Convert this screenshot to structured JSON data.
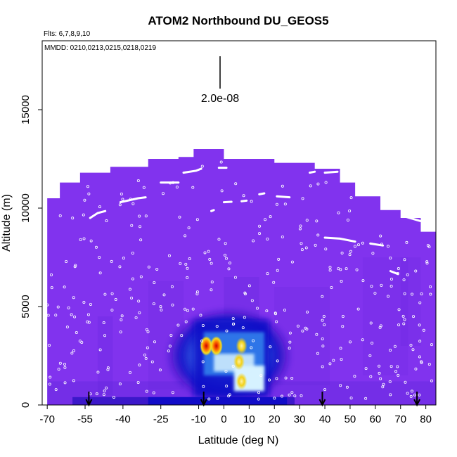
{
  "chart_data": {
    "type": "heatmap",
    "title": "ATOM2 Northbound DU_GEOS5",
    "flights_note": "Flts: 6,7,8,9,10",
    "dates_note": "MMDD: 0210,0213,0215,0218,0219",
    "scale_label": "2.0e-08",
    "xlabel": "Latitude (deg N)",
    "ylabel": "Altitude (m)",
    "xlim": [
      -72,
      84
    ],
    "ylim": [
      0,
      18500
    ],
    "x_ticks": [
      -70,
      -55,
      -40,
      -25,
      -10,
      0,
      10,
      20,
      30,
      40,
      50,
      60,
      70,
      80
    ],
    "y_ticks": [
      0,
      5000,
      10000,
      15000
    ],
    "arrow_latitudes": [
      -53.5,
      -8,
      39,
      76.5
    ],
    "model_top": [
      {
        "lat": -70,
        "alt": 10500
      },
      {
        "lat": -65,
        "alt": 11300
      },
      {
        "lat": -57,
        "alt": 11800
      },
      {
        "lat": -45,
        "alt": 12100
      },
      {
        "lat": -30,
        "alt": 12500
      },
      {
        "lat": -18,
        "alt": 12600
      },
      {
        "lat": -12,
        "alt": 13000
      },
      {
        "lat": 0,
        "alt": 12500
      },
      {
        "lat": 14,
        "alt": 12500
      },
      {
        "lat": 20,
        "alt": 12300
      },
      {
        "lat": 36,
        "alt": 12000
      },
      {
        "lat": 46,
        "alt": 11300
      },
      {
        "lat": 52,
        "alt": 10600
      },
      {
        "lat": 62,
        "alt": 9900
      },
      {
        "lat": 70,
        "alt": 9500
      },
      {
        "lat": 78,
        "alt": 8800
      },
      {
        "lat": 82,
        "alt": 8800
      }
    ],
    "flight_track_segments": [
      [
        [
          -62,
          11800
        ],
        [
          -58,
          11950
        ]
      ],
      [
        [
          -53,
          9500
        ],
        [
          -50,
          9750
        ],
        [
          -47,
          9850
        ]
      ],
      [
        [
          -41,
          10300
        ],
        [
          -34,
          10500
        ],
        [
          -31,
          10550
        ]
      ],
      [
        [
          -25,
          11300
        ],
        [
          -18,
          11300
        ]
      ],
      [
        [
          -16,
          11800
        ],
        [
          -11,
          11900
        ],
        [
          -9,
          12000
        ]
      ],
      [
        [
          -2,
          12050
        ],
        [
          1,
          12050
        ]
      ],
      [
        [
          -5,
          9850
        ],
        [
          -4,
          9900
        ]
      ],
      [
        [
          0,
          10300
        ],
        [
          3,
          10320
        ]
      ],
      [
        [
          7,
          10350
        ],
        [
          9,
          10380
        ]
      ],
      [
        [
          14,
          10700
        ],
        [
          16,
          10750
        ]
      ],
      [
        [
          21,
          10600
        ],
        [
          26,
          10550
        ]
      ],
      [
        [
          34,
          11800
        ],
        [
          36,
          11850
        ]
      ],
      [
        [
          40,
          11800
        ],
        [
          45,
          11850
        ]
      ],
      [
        [
          40,
          8500
        ],
        [
          46,
          8450
        ],
        [
          52,
          8300
        ]
      ],
      [
        [
          58,
          8200
        ],
        [
          63,
          8100
        ]
      ],
      [
        [
          66,
          6800
        ],
        [
          69,
          6650
        ]
      ],
      [
        [
          71,
          9600
        ],
        [
          75,
          9450
        ],
        [
          79,
          9300
        ]
      ]
    ],
    "dust_hotspots": [
      {
        "lat": -7,
        "alt": 3000,
        "value": 2e-08
      },
      {
        "lat": -3,
        "alt": 3000,
        "value": 2e-08
      },
      {
        "lat": 7,
        "alt": 3000,
        "value": 1.4e-08
      },
      {
        "lat": 6,
        "alt": 2200,
        "value": 1.2e-08
      },
      {
        "lat": 7,
        "alt": 1200,
        "value": 8e-09
      }
    ],
    "colors": {
      "background_field": "#8133ee",
      "low_field": "#5b24d9",
      "plume_edge": "#0a0ac8",
      "plume_mid": "#2f74e8",
      "plume_light": "#d6f2ff",
      "hot_yellow": "#f6dc1c",
      "hot_red": "#d20000",
      "track": "#ffffff",
      "axis": "#000000"
    }
  }
}
